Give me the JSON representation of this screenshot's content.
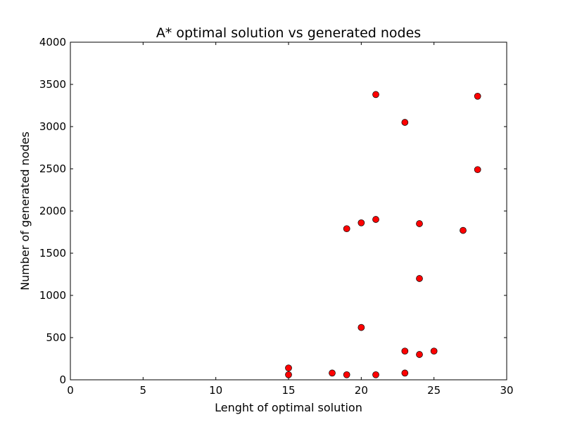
{
  "chart_data": {
    "type": "scatter",
    "title": "A* optimal solution vs generated nodes",
    "xlabel": "Lenght of optimal solution",
    "ylabel": "Number of generated nodes",
    "xlim": [
      0,
      30
    ],
    "ylim": [
      0,
      4000
    ],
    "xticks": [
      "0",
      "5",
      "10",
      "15",
      "20",
      "25",
      "30"
    ],
    "yticks": [
      "0",
      "500",
      "1000",
      "1500",
      "2000",
      "2500",
      "3000",
      "3500",
      "4000"
    ],
    "grid": false,
    "marker_color": "#ff0000",
    "series": [
      {
        "points": [
          {
            "x": 15,
            "y": 140
          },
          {
            "x": 15,
            "y": 60
          },
          {
            "x": 18,
            "y": 80
          },
          {
            "x": 19,
            "y": 60
          },
          {
            "x": 19,
            "y": 1790
          },
          {
            "x": 20,
            "y": 1860
          },
          {
            "x": 20,
            "y": 620
          },
          {
            "x": 21,
            "y": 3380
          },
          {
            "x": 21,
            "y": 1900
          },
          {
            "x": 21,
            "y": 60
          },
          {
            "x": 23,
            "y": 3050
          },
          {
            "x": 23,
            "y": 340
          },
          {
            "x": 23,
            "y": 80
          },
          {
            "x": 24,
            "y": 1850
          },
          {
            "x": 24,
            "y": 1200
          },
          {
            "x": 24,
            "y": 300
          },
          {
            "x": 25,
            "y": 340
          },
          {
            "x": 27,
            "y": 1770
          },
          {
            "x": 28,
            "y": 3360
          },
          {
            "x": 28,
            "y": 2490
          }
        ]
      }
    ]
  }
}
